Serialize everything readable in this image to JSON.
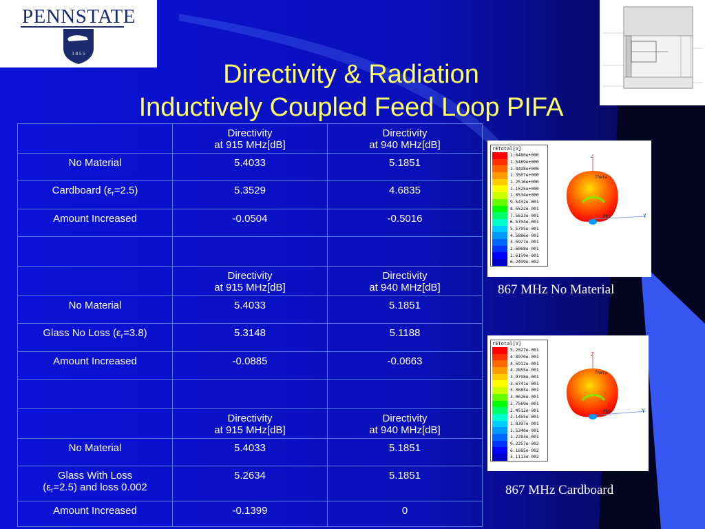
{
  "logo": {
    "wordmark": "PENNSTATE",
    "year": "1 8 5 5"
  },
  "title": {
    "line1": "Directivity & Radiation",
    "line2": "Inductively Coupled Feed Loop PIFA"
  },
  "table": {
    "header": {
      "line1": "Directivity",
      "line2_915": "at 915 MHz[dB]",
      "line2_940": "at 940 MHz[dB]"
    },
    "sections": [
      {
        "rows": [
          {
            "label": "No Material",
            "v915": "5.4033",
            "v940": "5.1851"
          },
          {
            "label_pre": "Cardboard (",
            "label_eps": "ε",
            "label_sub": "r",
            "label_post": "=2.5)",
            "v915": "5.3529",
            "v940": "4.6835"
          },
          {
            "label": "Amount Increased",
            "v915": "-0.0504",
            "v940": "-0.5016"
          }
        ]
      },
      {
        "rows": [
          {
            "label": "No Material",
            "v915": "5.4033",
            "v940": "5.1851"
          },
          {
            "label_pre": "Glass No Loss (",
            "label_eps": "ε",
            "label_sub": "r",
            "label_post": "=3.8)",
            "v915": "5.3148",
            "v940": "5.1188"
          },
          {
            "label": "Amount Increased",
            "v915": "-0.0885",
            "v940": "-0.0663"
          }
        ]
      },
      {
        "rows": [
          {
            "label": "No Material",
            "v915": "5.4033",
            "v940": "5.1851"
          },
          {
            "label_line1": "Glass With Loss",
            "label_pre": "(",
            "label_eps": "ε",
            "label_sub": "r",
            "label_post": "=2.5) and loss 0.002",
            "v915": "5.2634",
            "v940": "5.1851"
          },
          {
            "label": "Amount Increased",
            "v915": "-0.1399",
            "v940": "0"
          }
        ]
      }
    ]
  },
  "plots": [
    {
      "legend_title": "rETotal[V]",
      "legend_values": [
        "1.6480e+000",
        "1.5489e+000",
        "1.4498e+000",
        "1.3507e+000",
        "1.2516e+000",
        "1.1525e+000",
        "1.0534e+000",
        "9.5432e-001",
        "8.5522e-001",
        "7.5613e-001",
        "6.5704e-001",
        "5.5795e-001",
        "4.5886e-001",
        "3.5977e-001",
        "2.6068e-001",
        "1.6159e-001",
        "6.2499e-002"
      ],
      "axis_z": "Z",
      "axis_y": "Y",
      "theta": "Theta",
      "phi": "Phi",
      "caption": "867 MHz No Material"
    },
    {
      "legend_title": "rETotal[V]",
      "legend_values": [
        "5.2027e-001",
        "4.8970e-001",
        "4.5912e-001",
        "4.2855e-001",
        "3.9798e-001",
        "3.6741e-001",
        "3.3683e-001",
        "3.0626e-001",
        "2.7569e-001",
        "2.4512e-001",
        "2.1455e-001",
        "1.8397e-001",
        "1.5340e-001",
        "1.2283e-001",
        "9.2257e-002",
        "6.1685e-002",
        "3.1113e-002"
      ],
      "axis_z": "Z",
      "axis_y": "Y",
      "theta": "Theta",
      "phi": "Phi",
      "caption": "867 MHz Cardboard"
    }
  ],
  "legend_colors": [
    "#ff0000",
    "#ff3300",
    "#ff6600",
    "#ff9900",
    "#ffcc00",
    "#ffff00",
    "#ccff00",
    "#66ff00",
    "#00ff00",
    "#00ff66",
    "#00ffcc",
    "#00ccff",
    "#0099ff",
    "#0066ff",
    "#0033ff",
    "#0000ff",
    "#0000cc"
  ]
}
